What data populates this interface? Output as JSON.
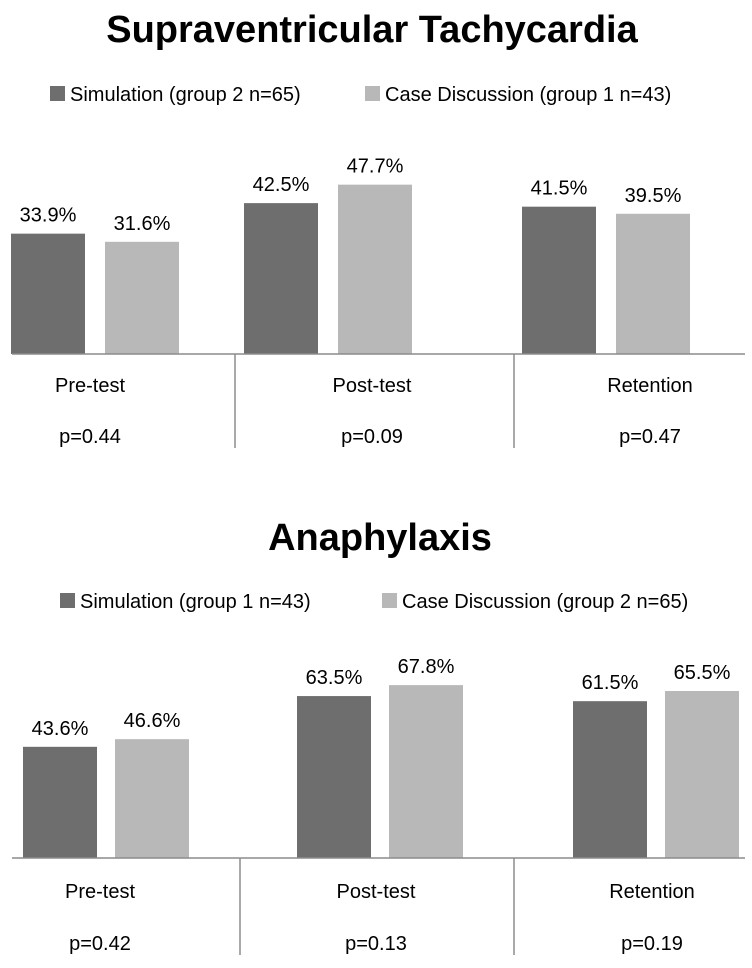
{
  "chart_data": [
    {
      "type": "bar",
      "title": "Supraventricular Tachycardia",
      "categories": [
        "Pre-test",
        "Post-test",
        "Retention"
      ],
      "category_notes": [
        "p=0.44",
        "p=0.09",
        "p=0.47"
      ],
      "series": [
        {
          "name": "Simulation (group 2 n=65)",
          "values": [
            33.9,
            42.5,
            41.5
          ],
          "labels": [
            "33.9%",
            "42.5%",
            "41.5%"
          ],
          "color": "#6e6e6e"
        },
        {
          "name": "Case Discussion (group 1 n=43)",
          "values": [
            31.6,
            47.7,
            39.5
          ],
          "labels": [
            "31.6%",
            "47.7%",
            "39.5%"
          ],
          "color": "#b8b8b8"
        }
      ],
      "legend": "top",
      "grid": false,
      "ylim": [
        0,
        58
      ]
    },
    {
      "type": "bar",
      "title": "Anaphylaxis",
      "categories": [
        "Pre-test",
        "Post-test",
        "Retention"
      ],
      "category_notes": [
        "p=0.42",
        "p=0.13",
        "p=0.19"
      ],
      "series": [
        {
          "name": "Simulation (group 1 n=43)",
          "values": [
            43.6,
            63.5,
            61.5
          ],
          "labels": [
            "43.6%",
            "63.5%",
            "61.5%"
          ],
          "color": "#6e6e6e"
        },
        {
          "name": "Case Discussion (group 2 n=65)",
          "values": [
            46.6,
            67.8,
            65.5
          ],
          "labels": [
            "46.6%",
            "67.8%",
            "65.5%"
          ],
          "color": "#b8b8b8"
        }
      ],
      "legend": "top",
      "grid": false,
      "ylim": [
        0,
        77
      ]
    }
  ]
}
